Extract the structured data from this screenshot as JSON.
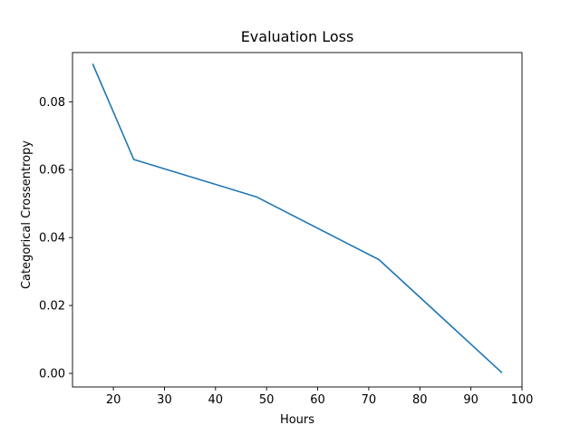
{
  "chart_data": {
    "type": "line",
    "title": "Evaluation Loss",
    "xlabel": "Hours",
    "ylabel": "Categorical Crossentropy",
    "xlim": [
      12,
      100
    ],
    "ylim": [
      -0.004,
      0.0945
    ],
    "xticks": [
      20,
      30,
      40,
      50,
      60,
      70,
      80,
      90,
      100
    ],
    "xtick_labels": [
      "20",
      "30",
      "40",
      "50",
      "60",
      "70",
      "80",
      "90",
      "100"
    ],
    "yticks": [
      0.0,
      0.02,
      0.04,
      0.06,
      0.08
    ],
    "ytick_labels": [
      "0.00",
      "0.02",
      "0.04",
      "0.06",
      "0.08"
    ],
    "grid": false,
    "series": [
      {
        "color": "#1f77b4",
        "x": [
          16,
          24,
          48,
          72,
          96
        ],
        "y": [
          0.091,
          0.063,
          0.052,
          0.0335,
          0.0003
        ]
      }
    ]
  }
}
